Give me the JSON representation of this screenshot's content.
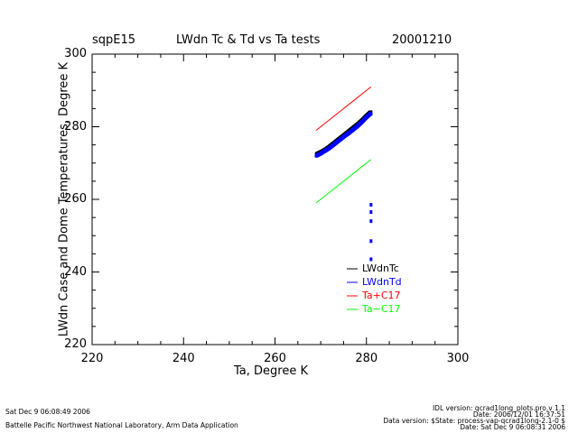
{
  "header": {
    "site": "sqpE15",
    "title": "LWdn Tc & Td vs Ta tests",
    "date": "20001210"
  },
  "footer": {
    "left_timestamp": "Sat Dec  9 06:08:49 2006",
    "left_credit": "Battelle Pacific Northwest National Laboratory, Arm Data Application",
    "right_line1": "IDL version: qcrad1long_plots.pro,v 1.1",
    "right_line2": "Date: 2006/12/01 16:37:51",
    "right_line3": "Data version: $State: process-vap-qcrad1long-2.1-0 $",
    "right_line4": "Date: Sat Dec  9 06:08:31 2006"
  },
  "colors": {
    "LWdnTc": "#000000",
    "LWdnTd": "#0000ff",
    "TaPlusC17": "#ff0000",
    "TaMinusC17": "#00ff00"
  },
  "chart_data": {
    "type": "scatter",
    "title": "LWdn Tc & Td vs Ta tests",
    "xlabel": "Ta, Degree K",
    "ylabel": "LWdn Case and Dome Temperatures, Degree K",
    "xlim": [
      220,
      300
    ],
    "ylim": [
      220,
      300
    ],
    "xticks": [
      220,
      240,
      260,
      280,
      300
    ],
    "yticks": [
      220,
      240,
      260,
      280,
      300
    ],
    "legend_position": "bottom-right",
    "series": [
      {
        "name": "LWdnTc",
        "type": "scatter",
        "color": "#000000",
        "x": [
          269.0,
          270.0,
          271.0,
          272.0,
          273.0,
          274.0,
          275.0,
          276.0,
          277.0,
          278.0,
          279.0,
          280.0,
          281.0
        ],
        "y": [
          272.3,
          272.9,
          273.6,
          274.5,
          275.5,
          276.5,
          277.5,
          278.5,
          279.5,
          280.5,
          281.6,
          282.9,
          284.0
        ]
      },
      {
        "name": "LWdnTd",
        "type": "scatter",
        "color": "#0000ff",
        "x": [
          269.0,
          270.0,
          271.0,
          272.0,
          273.0,
          274.0,
          275.0,
          276.0,
          277.0,
          278.0,
          279.0,
          280.0,
          281.0,
          281.0,
          281.0,
          281.0,
          281.0,
          281.0
        ],
        "y": [
          272.0,
          272.6,
          273.4,
          274.2,
          275.2,
          276.2,
          277.2,
          278.1,
          279.1,
          280.1,
          281.3,
          282.6,
          283.7,
          258.5,
          256.5,
          254.0,
          248.5,
          243.5
        ]
      },
      {
        "name": "Ta+C17",
        "type": "line",
        "color": "#ff0000",
        "x": [
          269.0,
          281.0
        ],
        "y": [
          279.0,
          291.0
        ]
      },
      {
        "name": "Ta−C17",
        "type": "line",
        "color": "#00ff00",
        "x": [
          269.0,
          281.0
        ],
        "y": [
          259.0,
          271.0
        ]
      }
    ]
  }
}
